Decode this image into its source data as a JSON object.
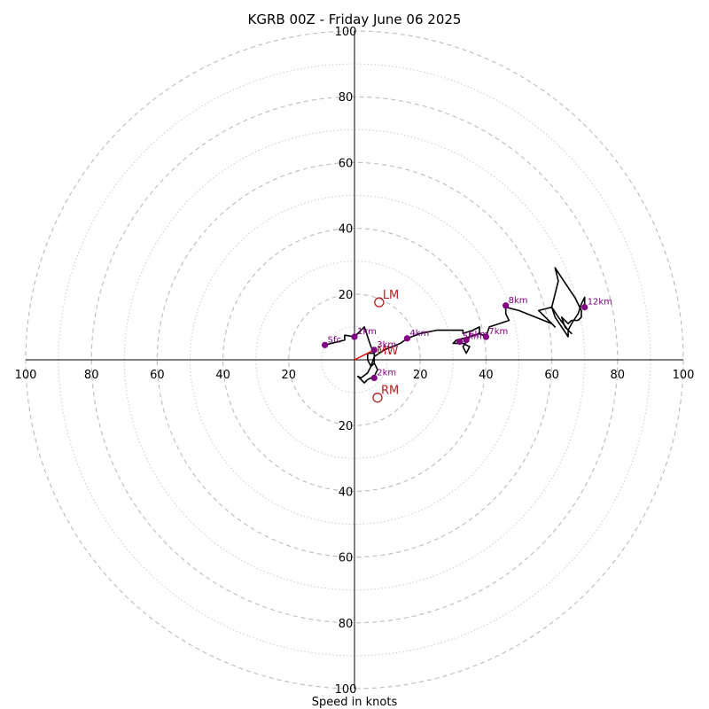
{
  "chart_data": {
    "type": "scatter",
    "title": "KGRB 00Z - Friday June 06 2025",
    "xlabel": "Speed in knots",
    "ylabel": "",
    "units": "knots",
    "range": 100,
    "ring_major": [
      20,
      40,
      60,
      80,
      100
    ],
    "ring_minor": [
      10,
      30,
      50,
      70,
      90
    ],
    "tick_labels": [
      "20",
      "40",
      "60",
      "80",
      "100"
    ],
    "grid": true,
    "colors": {
      "trace": "#000000",
      "points": "#800080",
      "motion": "#b22222",
      "mean_wind": "#ff0000",
      "grid": "#bbbbbb"
    },
    "trace": [
      [
        -9,
        4.5
      ],
      [
        -3,
        6
      ],
      [
        -3,
        7.5
      ],
      [
        0,
        7
      ],
      [
        3,
        10
      ],
      [
        5,
        4
      ],
      [
        6,
        2
      ],
      [
        6,
        -1
      ],
      [
        7,
        -3
      ],
      [
        6,
        -5
      ],
      [
        4,
        -6
      ],
      [
        3,
        -7
      ],
      [
        1,
        -5
      ],
      [
        2,
        -5.5
      ],
      [
        4,
        -4
      ],
      [
        5,
        -2
      ],
      [
        4,
        0
      ],
      [
        4,
        2
      ],
      [
        6,
        2
      ],
      [
        6,
        -1
      ],
      [
        5,
        -2
      ],
      [
        6,
        1
      ],
      [
        9,
        3
      ],
      [
        14,
        5
      ],
      [
        16,
        6.5
      ],
      [
        20,
        8
      ],
      [
        25,
        9
      ],
      [
        30,
        9
      ],
      [
        33,
        9
      ],
      [
        33,
        8
      ],
      [
        36,
        9
      ],
      [
        38,
        10
      ],
      [
        38,
        8
      ],
      [
        35,
        7
      ],
      [
        33,
        4
      ],
      [
        34,
        2
      ],
      [
        35,
        4
      ],
      [
        33,
        5
      ],
      [
        30,
        5
      ],
      [
        31,
        6
      ],
      [
        35,
        7
      ],
      [
        38,
        8
      ],
      [
        40,
        7
      ],
      [
        41,
        10
      ],
      [
        44,
        11
      ],
      [
        47,
        12
      ],
      [
        46,
        14
      ],
      [
        46,
        16
      ],
      [
        50,
        15
      ],
      [
        55,
        13
      ],
      [
        60,
        11
      ],
      [
        61,
        10
      ],
      [
        60,
        11
      ],
      [
        58,
        13
      ],
      [
        56,
        15
      ],
      [
        60,
        16
      ],
      [
        62,
        13
      ],
      [
        65,
        9
      ],
      [
        65,
        7
      ],
      [
        63,
        10
      ],
      [
        61,
        13
      ],
      [
        60,
        16
      ],
      [
        61,
        20
      ],
      [
        62,
        24
      ],
      [
        61,
        28
      ],
      [
        63,
        25
      ],
      [
        65,
        22
      ],
      [
        67,
        19
      ],
      [
        68,
        17
      ],
      [
        69,
        15
      ],
      [
        69,
        13
      ],
      [
        68,
        12
      ],
      [
        66,
        12
      ],
      [
        65,
        11
      ],
      [
        63,
        13
      ],
      [
        64,
        10
      ],
      [
        66,
        8
      ],
      [
        65,
        9
      ],
      [
        66,
        11
      ],
      [
        68,
        14
      ],
      [
        69,
        17
      ],
      [
        70,
        19
      ],
      [
        70,
        16
      ]
    ],
    "height_points": [
      {
        "label": "Sfc",
        "u": -9,
        "v": 4.5
      },
      {
        "label": "1km",
        "u": 0,
        "v": 7
      },
      {
        "label": "2km",
        "u": 6,
        "v": -5.5
      },
      {
        "label": "3km",
        "u": 6,
        "v": 3
      },
      {
        "label": "4km",
        "u": 16,
        "v": 6.5
      },
      {
        "label": "5km",
        "u": 32,
        "v": 5.5
      },
      {
        "label": "6km",
        "u": 34,
        "v": 6
      },
      {
        "label": "7km",
        "u": 40,
        "v": 7
      },
      {
        "label": "8km",
        "u": 46,
        "v": 16.5
      },
      {
        "label": "12km",
        "u": 70,
        "v": 16
      }
    ],
    "storm_motion": [
      {
        "label": "LM",
        "u": 7.5,
        "v": 17.5
      },
      {
        "label": "RM",
        "u": 7,
        "v": -11.5
      }
    ],
    "mean_wind": {
      "label": "MW",
      "u": 6,
      "v": 3
    }
  }
}
